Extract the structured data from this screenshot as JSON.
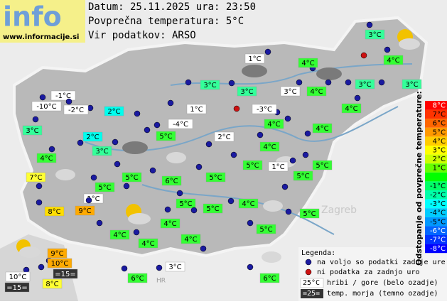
{
  "header": {
    "logo": "info",
    "site": "www.informacije.si",
    "date": "Datum: 25.11.2025 ura: 23:50",
    "average": "Povprečna temperatura: 5°C",
    "source": "Vir podatkov: ARSO"
  },
  "stations": [
    {
      "label": "3°C",
      "color": "#33ff99"
    },
    {
      "label": "4°C",
      "color": "#33ff33"
    },
    {
      "label": "1°C",
      "color": "#ffffff"
    },
    {
      "label": "4°C",
      "color": "#33ff33"
    },
    {
      "label": "3°C",
      "color": "#33ff99"
    },
    {
      "label": "3°C",
      "color": "#33ff99"
    },
    {
      "label": "3°C",
      "color": "#ffffff"
    },
    {
      "label": "4°C",
      "color": "#33ff33"
    },
    {
      "label": "3°C",
      "color": "#33ff99"
    },
    {
      "label": "3°C",
      "color": "#33ff99"
    },
    {
      "label": "-1°C",
      "color": "#ffffff"
    },
    {
      "label": "-10°C",
      "color": "#ffffff"
    },
    {
      "label": "-2°C",
      "color": "#ffffff"
    },
    {
      "label": "2°C",
      "color": "#00ffee"
    },
    {
      "label": "1°C",
      "color": "#ffffff"
    },
    {
      "label": "-3°C",
      "color": "#ffffff"
    },
    {
      "label": "4°C",
      "color": "#33ff33"
    },
    {
      "label": "3°C",
      "color": "#33ff99"
    },
    {
      "label": "-4°C",
      "color": "#ffffff"
    },
    {
      "label": "4°C",
      "color": "#33ff33"
    },
    {
      "label": "4°C",
      "color": "#33ff33"
    },
    {
      "label": "2°C",
      "color": "#00ffee"
    },
    {
      "label": "5°C",
      "color": "#33ff33"
    },
    {
      "label": "2°C",
      "color": "#ffffff"
    },
    {
      "label": "4°C",
      "color": "#33ff33"
    },
    {
      "label": "3°C",
      "color": "#33ff99"
    },
    {
      "label": "4°C",
      "color": "#33ff33"
    },
    {
      "label": "5°C",
      "color": "#33ff33"
    },
    {
      "label": "1°C",
      "color": "#ffffff"
    },
    {
      "label": "5°C",
      "color": "#33ff33"
    },
    {
      "label": "5°C",
      "color": "#33ff33"
    },
    {
      "label": "6°C",
      "color": "#33ff33"
    },
    {
      "label": "5°C",
      "color": "#33ff33"
    },
    {
      "label": "5°C",
      "color": "#33ff33"
    },
    {
      "label": "7°C",
      "color": "#ffff33"
    },
    {
      "label": "5°C",
      "color": "#33ff33"
    },
    {
      "label": "1°C",
      "color": "#ffffff"
    },
    {
      "label": "5°C",
      "color": "#33ff33"
    },
    {
      "label": "5°C",
      "color": "#33ff33"
    },
    {
      "label": "4°C",
      "color": "#33ff33"
    },
    {
      "label": "8°C",
      "color": "#ffdd00"
    },
    {
      "label": "9°C",
      "color": "#ffaa00"
    },
    {
      "label": "5°C",
      "color": "#33ff33"
    },
    {
      "label": "4°C",
      "color": "#33ff33"
    },
    {
      "label": "5°C",
      "color": "#33ff33"
    },
    {
      "label": "4°C",
      "color": "#33ff33"
    },
    {
      "label": "4°C",
      "color": "#33ff33"
    },
    {
      "label": "4°C",
      "color": "#33ff33"
    },
    {
      "label": "9°C",
      "color": "#ffaa00"
    },
    {
      "label": "10°C",
      "color": "#ffaa00"
    },
    {
      "label": "=15=",
      "color": "#333333"
    },
    {
      "label": "10°C",
      "color": "#ffffff"
    },
    {
      "label": "=15=",
      "color": "#333333"
    },
    {
      "label": "8°C",
      "color": "#ffff33"
    },
    {
      "label": "6°C",
      "color": "#33ff33"
    },
    {
      "label": "3°C",
      "color": "#ffffff"
    },
    {
      "label": "6°C",
      "color": "#33ff33"
    }
  ],
  "places": [
    "Zagreb",
    "HR"
  ],
  "scale": {
    "title": "Odstopanje od povprečne temperature:",
    "steps": [
      {
        "label": "8°C",
        "color": "#ff0000"
      },
      {
        "label": "7°C",
        "color": "#ff3300"
      },
      {
        "label": "6°C",
        "color": "#ff6600"
      },
      {
        "label": "5°C",
        "color": "#ff9900"
      },
      {
        "label": "4°C",
        "color": "#ffcc00"
      },
      {
        "label": "3°C",
        "color": "#ffff00"
      },
      {
        "label": "2°C",
        "color": "#ccff00"
      },
      {
        "label": "1°C",
        "color": "#66ff00"
      },
      {
        "label": null,
        "color": "#00ff00"
      },
      {
        "label": "-1°C",
        "color": "#00ff66"
      },
      {
        "label": "-2°C",
        "color": "#00ffaa"
      },
      {
        "label": "-3°C",
        "color": "#00ffff"
      },
      {
        "label": "-4°C",
        "color": "#00ccff"
      },
      {
        "label": "-5°C",
        "color": "#0099ff"
      },
      {
        "label": "-6°C",
        "color": "#0066ff"
      },
      {
        "label": "-7°C",
        "color": "#0033ff"
      },
      {
        "label": "-8°C",
        "color": "#0000ff"
      }
    ]
  },
  "legend": {
    "title": "Legenda:",
    "available": "na voljo so podatki zadnje ure",
    "missing": "ni podatka za zadnjo uro",
    "mountain_sample": "25°C",
    "mountain": "hribi / gore (belo ozadje)",
    "sea_sample": "=25=",
    "sea": "temp. morja (temno ozadje)"
  }
}
